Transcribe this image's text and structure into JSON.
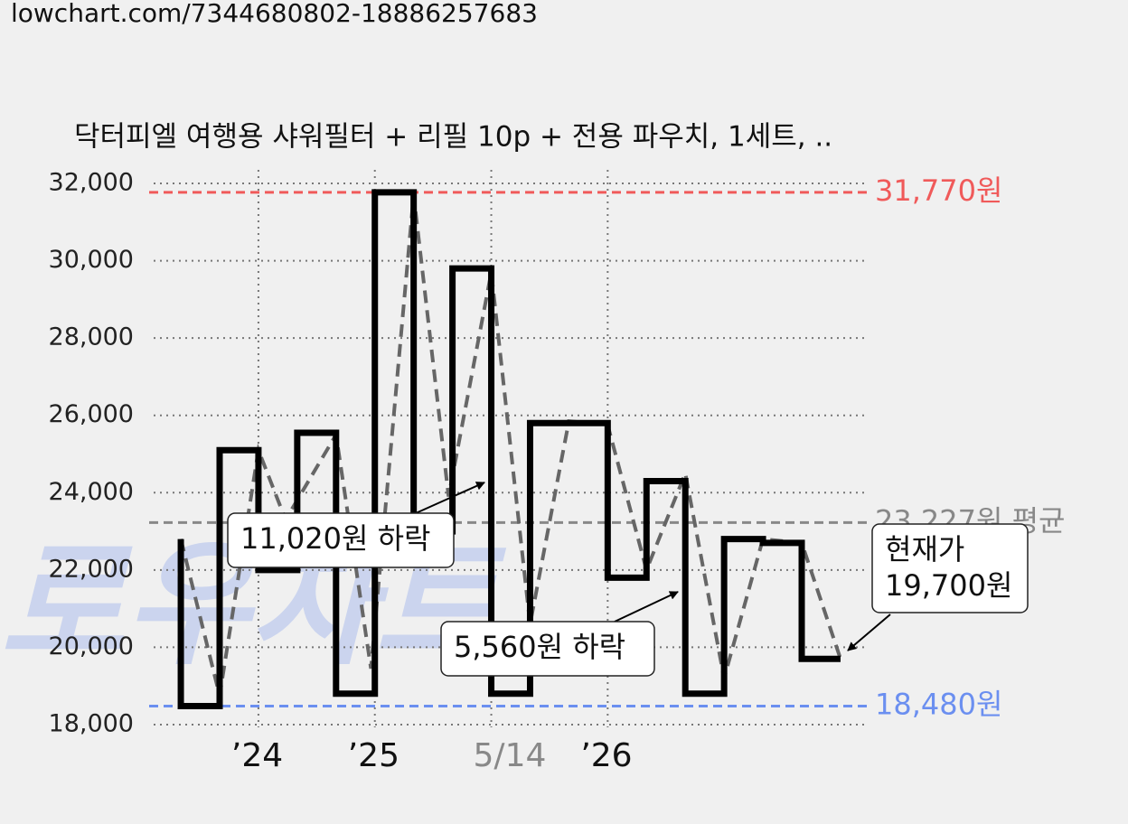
{
  "url": "lowchart.com/7344680802-18886257683",
  "chart_data": {
    "type": "step",
    "title": "닥터피엘 여행용 샤워필터 + 리필 10p + 전용 파우치, 1세트, ..",
    "watermark": "로우차트",
    "series": [
      {
        "color": "#000000",
        "style": "solid",
        "x": [
          1,
          1,
          2,
          3,
          4,
          5,
          6,
          7,
          8,
          9,
          10,
          12,
          13,
          14,
          15,
          16,
          17,
          18
        ],
        "values": [
          22800,
          18480,
          25100,
          22000,
          25550,
          18800,
          31770,
          23000,
          29800,
          18800,
          25800,
          21800,
          24300,
          18800,
          22800,
          22700,
          19700,
          19700
        ]
      },
      {
        "color": "#666666",
        "style": "dashed",
        "x": [
          1,
          2,
          3,
          3.7,
          5,
          5.9,
          7,
          7.9,
          9,
          10,
          11,
          12,
          13,
          14,
          15,
          16,
          17,
          18
        ],
        "values": [
          22800,
          18750,
          25100,
          23300,
          25500,
          19450,
          31700,
          23900,
          29700,
          20600,
          25850,
          25750,
          22000,
          24500,
          19200,
          22800,
          22700,
          19700
        ]
      }
    ],
    "xlim": [
      0.3,
      18.7
    ],
    "xticks": [
      {
        "value": 3,
        "label": "’24"
      },
      {
        "value": 6,
        "label": "’25"
      },
      {
        "value": 9,
        "label": "5/14"
      },
      {
        "value": 12,
        "label": "’26"
      }
    ],
    "ylim": [
      18000,
      32000
    ],
    "yticks": [
      {
        "value": 18000,
        "label": "18,000"
      },
      {
        "value": 20000,
        "label": "20,000"
      },
      {
        "value": 22000,
        "label": "22,000"
      },
      {
        "value": 24000,
        "label": "24,000"
      },
      {
        "value": 26000,
        "label": "26,000"
      },
      {
        "value": 28000,
        "label": "28,000"
      },
      {
        "value": 30000,
        "label": "30,000"
      },
      {
        "value": 32000,
        "label": "32,000"
      }
    ],
    "grid": true,
    "reference_lines": [
      {
        "value": 31770,
        "label": "31,770원",
        "color": "#f05a5a"
      },
      {
        "value": 23227,
        "label": "23,227원 평균",
        "color": "#888888"
      },
      {
        "value": 18480,
        "label": "18,480원",
        "color": "#6b8ff0"
      }
    ],
    "annotations": [
      "11,020원 하락",
      "5,560원 하락",
      "현재가\n19,700원"
    ]
  }
}
